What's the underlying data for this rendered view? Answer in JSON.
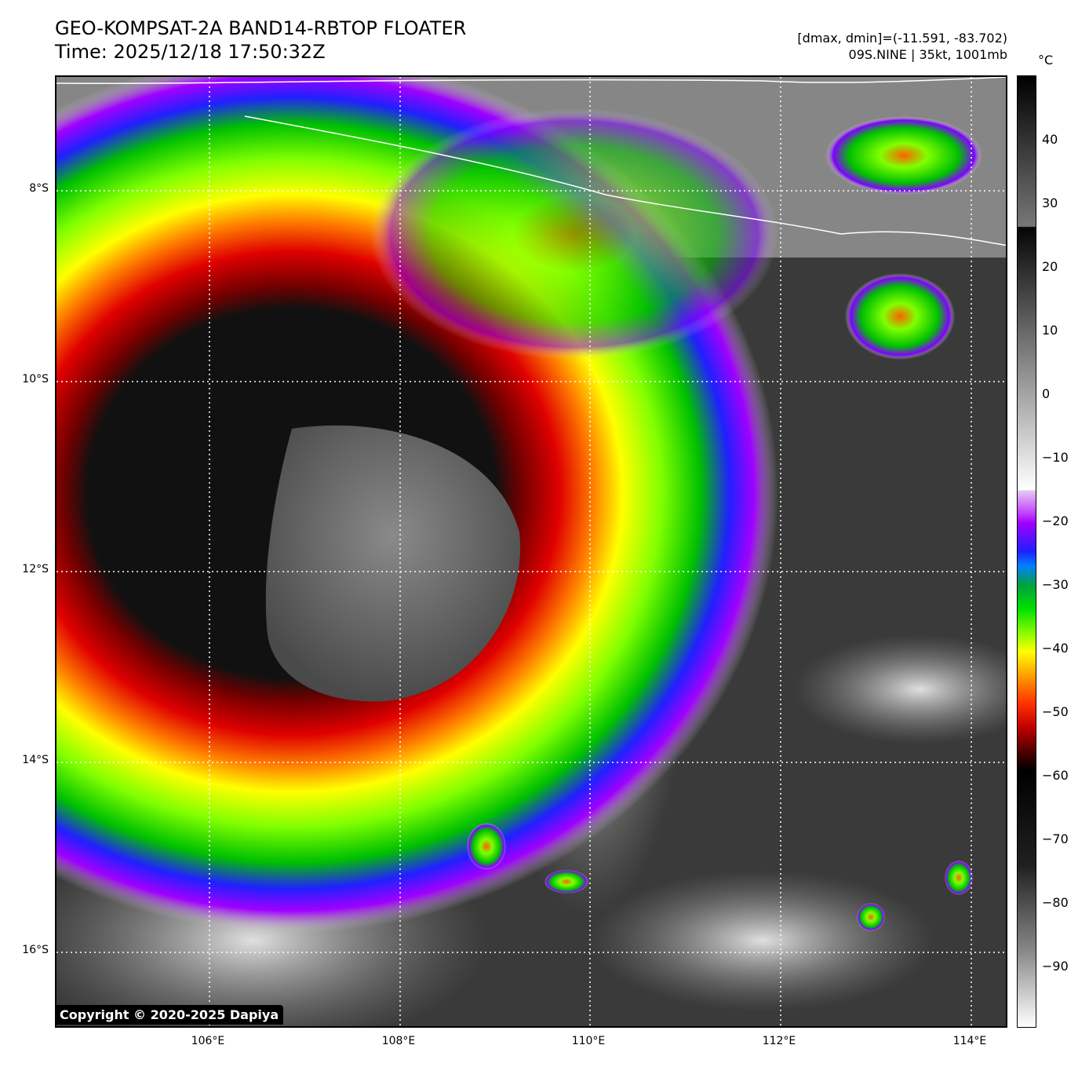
{
  "header": {
    "title": "GEO-KOMPSAT-2A BAND14-RBTOP FLOATER",
    "time": "Time: 2025/12/18 17:50:32Z",
    "range": "[dmax, dmin]=(-11.591, -83.702)",
    "storm": "09S.NINE | 35kt, 1001mb"
  },
  "axes": {
    "lat_labels": [
      "8°S",
      "10°S",
      "12°S",
      "14°S",
      "16°S"
    ],
    "lon_labels": [
      "106°E",
      "108°E",
      "110°E",
      "112°E",
      "114°E"
    ]
  },
  "colorbar": {
    "unit": "°C",
    "ticks": [
      "40",
      "30",
      "20",
      "10",
      "0",
      "−10",
      "−20",
      "−30",
      "−40",
      "−50",
      "−60",
      "−70",
      "−80",
      "−90"
    ],
    "range": [
      -100,
      50
    ]
  },
  "copyright": "Copyright © 2020-2025 Dapiya",
  "colors": {
    "eye": "#555555",
    "ring": "#b00000",
    "background": "#3a3a3a"
  }
}
